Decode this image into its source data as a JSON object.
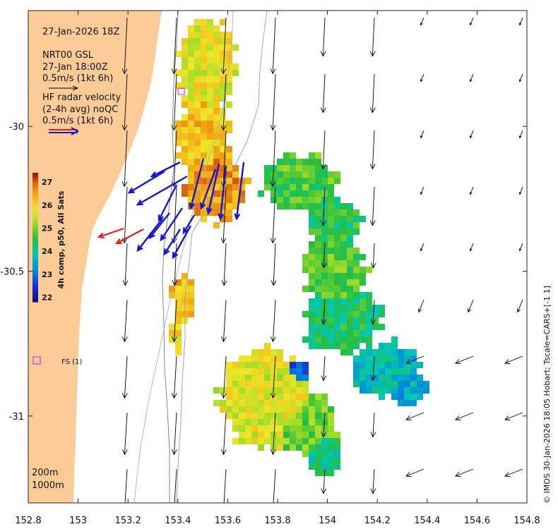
{
  "map": {
    "title_time": "27-Jan-2026 18Z",
    "model_label": "NRT00 GSL",
    "model_time": "27-Jan 18:00Z",
    "model_scale": "0.5m/s (1kt 6h)",
    "radar_label": "HF radar velocity",
    "radar_avg": "(2-4h avg) noQC",
    "radar_scale": "0.5m/s (1kt 6h)",
    "station_label": "FS (1)",
    "contour_200": "200m",
    "contour_1000": "1000m",
    "credit": "© IMOS 30-Jan-2026 18:05 Hobart; Tscale=CARS+[-1 1]"
  },
  "axes": {
    "x_ticks": [
      "152.8",
      "153",
      "153.2",
      "153.4",
      "153.6",
      "153.8",
      "154",
      "154.2",
      "154.4",
      "154.6",
      "154.8"
    ],
    "y_ticks": [
      "-30",
      "-30.5",
      "-31"
    ],
    "xlim": [
      152.8,
      154.8
    ],
    "ylim": [
      -31.3,
      -29.6
    ]
  },
  "colorbar": {
    "label": "4h comp, p50, All Sats",
    "ticks": [
      "27",
      "26",
      "25",
      "24",
      "23",
      "22"
    ],
    "range": [
      21.8,
      27.4
    ]
  },
  "colors": {
    "land": "#fdcb96",
    "model_arrow": "#000000",
    "radar_arrow": "#1414d2",
    "radar_arrow_flag": "#e02020",
    "marker": "#e010e0"
  }
}
